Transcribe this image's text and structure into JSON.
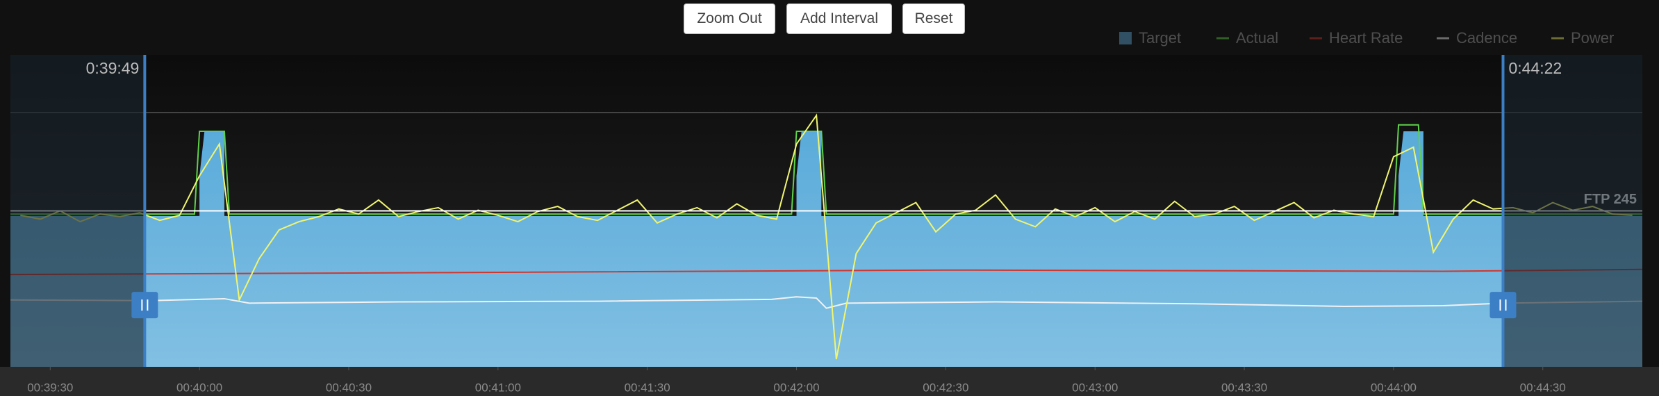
{
  "buttons": [
    "Zoom Out",
    "Add Interval",
    "Reset"
  ],
  "chart_data": {
    "type": "line",
    "xlim": [
      2362,
      2690
    ],
    "ylim": [
      0,
      490
    ],
    "xticks": [
      {
        "value": 2370,
        "label": "00:39:30"
      },
      {
        "value": 2400,
        "label": "00:40:00"
      },
      {
        "value": 2430,
        "label": "00:40:30"
      },
      {
        "value": 2460,
        "label": "00:41:00"
      },
      {
        "value": 2490,
        "label": "00:41:30"
      },
      {
        "value": 2520,
        "label": "00:42:00"
      },
      {
        "value": 2550,
        "label": "00:42:30"
      },
      {
        "value": 2580,
        "label": "00:43:00"
      },
      {
        "value": 2610,
        "label": "00:43:30"
      },
      {
        "value": 2640,
        "label": "00:44:00"
      },
      {
        "value": 2670,
        "label": "00:44:30"
      }
    ],
    "selection": [
      {
        "value": 2389,
        "label": "0:39:49"
      },
      {
        "value": 2662,
        "label": "0:44:22"
      }
    ],
    "ftp": {
      "value": 245,
      "label": "FTP 245"
    },
    "series": [
      {
        "name": "Target",
        "color": "#62b0de",
        "kind": "area",
        "x": [
          2362,
          2400,
          2400,
          2401,
          2405,
          2405,
          2520,
          2520,
          2521,
          2525,
          2525,
          2641,
          2641,
          2642,
          2646,
          2646,
          2690
        ],
        "values": [
          237,
          237,
          300,
          370,
          370,
          237,
          237,
          300,
          370,
          370,
          237,
          237,
          300,
          370,
          370,
          237,
          237
        ]
      },
      {
        "name": "Actual",
        "color": "#5fd14a",
        "kind": "line",
        "x": [
          2362,
          2399,
          2400,
          2405,
          2406,
          2519,
          2520,
          2525,
          2526,
          2640,
          2641,
          2645,
          2646,
          2690
        ],
        "values": [
          240,
          240,
          370,
          370,
          240,
          240,
          370,
          370,
          240,
          240,
          380,
          380,
          240,
          240
        ]
      },
      {
        "name": "Heart Rate",
        "color": "#d0362e",
        "kind": "line",
        "x": [
          2362,
          2450,
          2550,
          2650,
          2690
        ],
        "values": [
          145,
          148,
          152,
          150,
          153
        ]
      },
      {
        "name": "Cadence",
        "color": "#f2f2f2",
        "kind": "line",
        "x": [
          2362,
          2390,
          2400,
          2405,
          2410,
          2440,
          2480,
          2515,
          2520,
          2524,
          2526,
          2530,
          2560,
          2600,
          2630,
          2650,
          2662,
          2690
        ],
        "values": [
          105,
          104,
          106,
          107,
          100,
          102,
          103,
          106,
          110,
          108,
          92,
          100,
          102,
          99,
          95,
          96,
          100,
          103
        ]
      },
      {
        "name": "Power",
        "color": "#f1f56f",
        "kind": "line",
        "x": [
          2364,
          2368,
          2372,
          2376,
          2380,
          2384,
          2388,
          2392,
          2396,
          2400,
          2404,
          2408,
          2412,
          2416,
          2420,
          2424,
          2428,
          2432,
          2436,
          2440,
          2444,
          2448,
          2452,
          2456,
          2460,
          2464,
          2468,
          2472,
          2476,
          2480,
          2484,
          2488,
          2492,
          2496,
          2500,
          2504,
          2508,
          2512,
          2516,
          2520,
          2524,
          2528,
          2532,
          2536,
          2540,
          2544,
          2548,
          2552,
          2556,
          2560,
          2564,
          2568,
          2572,
          2576,
          2580,
          2584,
          2588,
          2592,
          2596,
          2600,
          2604,
          2608,
          2612,
          2616,
          2620,
          2624,
          2628,
          2632,
          2636,
          2640,
          2644,
          2648,
          2652,
          2656,
          2660,
          2664,
          2668,
          2672,
          2676,
          2680,
          2684,
          2688
        ],
        "values": [
          238,
          232,
          245,
          228,
          240,
          236,
          242,
          230,
          238,
          300,
          350,
          105,
          170,
          215,
          228,
          236,
          248,
          240,
          262,
          236,
          244,
          250,
          232,
          246,
          238,
          228,
          244,
          252,
          236,
          230,
          246,
          262,
          226,
          240,
          250,
          234,
          256,
          238,
          232,
          350,
          395,
          12,
          178,
          226,
          242,
          258,
          212,
          240,
          246,
          270,
          232,
          220,
          248,
          236,
          250,
          228,
          244,
          232,
          260,
          236,
          240,
          252,
          230,
          244,
          258,
          234,
          246,
          240,
          236,
          330,
          345,
          180,
          232,
          262,
          248,
          250,
          242,
          258,
          246,
          252,
          240,
          238
        ]
      }
    ]
  }
}
